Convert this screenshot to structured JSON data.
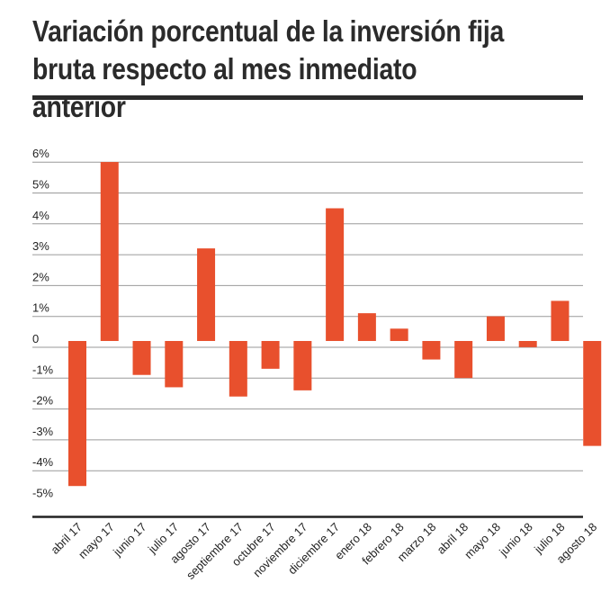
{
  "title_line1": "Variación porcentual de la inversión fija",
  "title_line2": "bruta respecto al mes inmediato anterior",
  "colors": {
    "bar": "#e8502d",
    "grid": "#9a9a9a",
    "axis": "#222222",
    "rule": "#2b2b2b"
  },
  "chart_data": {
    "type": "bar",
    "title": "Variación porcentual de la inversión fija bruta respecto al mes inmediato anterior",
    "xlabel": "",
    "ylabel": "",
    "categories": [
      "abril 17",
      "mayo 17",
      "junio 17",
      "julio 17",
      "agosto 17",
      "septiembre 17",
      "octubre 17",
      "noviembre 17",
      "diciembre 17",
      "enero 18",
      "febrero 18",
      "marzo 18",
      "abril 18",
      "mayo 18",
      "junio 18",
      "julio 18",
      "agosto 18"
    ],
    "values": [
      -4.7,
      5.8,
      -1.1,
      -1.5,
      3.0,
      -1.8,
      -0.9,
      -1.6,
      4.3,
      0.9,
      0.4,
      -0.6,
      -1.2,
      0.8,
      -0.2,
      1.3,
      -3.4
    ],
    "ylim": [
      -5,
      6
    ],
    "yticks": [
      6,
      5,
      4,
      3,
      2,
      1,
      0,
      -1,
      -2,
      -3,
      -4,
      -5
    ],
    "ytick_labels": [
      "6%",
      "5%",
      "4%",
      "3%",
      "2%",
      "1%",
      "0",
      "-1%",
      "-2%",
      "-3%",
      "-4%",
      "-5%"
    ],
    "grid": true,
    "legend": "none"
  }
}
